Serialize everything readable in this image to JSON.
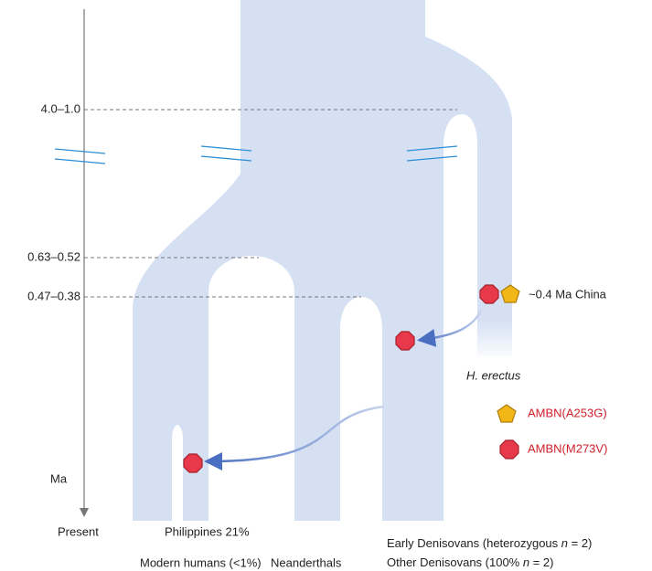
{
  "axis": {
    "ticks": [
      "4.0–1.0",
      "0.63–0.52",
      "0.47–0.38"
    ],
    "unit": "Ma",
    "end": "Present"
  },
  "lineages": {
    "philippines": "Philippines 21%",
    "modern_humans": "Modern humans (<1%)",
    "neanderthals": "Neanderthals",
    "early_denisovans": [
      "Early Denisovans (heterozygous ",
      "n",
      " = 2)"
    ],
    "other_denisovans": [
      "Other Denisovans (100% ",
      "n",
      " = 2)"
    ],
    "china": "~0.4 Ma China",
    "erectus": "H. erectus"
  },
  "legend": [
    "AMBN(A253G)",
    "AMBN(M273V)"
  ]
}
